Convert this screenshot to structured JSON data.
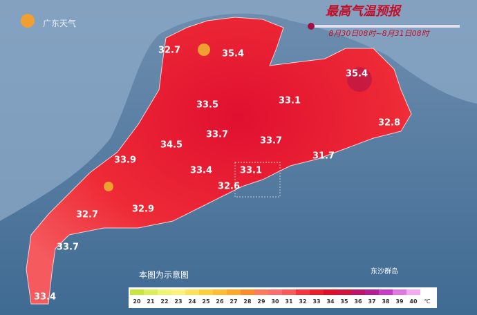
{
  "logo": {
    "text": "广东天气"
  },
  "header": {
    "title": "最高气温预报",
    "period": "8月30日08时~8月31日08时"
  },
  "map": {
    "labels": [
      "32.7",
      "35.4",
      "35.4",
      "33.5",
      "33.1",
      "32.8",
      "33.7",
      "33.7",
      "34.5",
      "31.7",
      "33.9",
      "33.4",
      "33.1",
      "32.6",
      "32.7",
      "32.9",
      "33.7",
      "33.4"
    ],
    "island": "东沙群岛",
    "note": "本图为示意图"
  },
  "legend": {
    "unit": "℃",
    "items": [
      {
        "label": 20,
        "color": "#c8e63c"
      },
      {
        "label": 21,
        "color": "#dcef5a"
      },
      {
        "label": 22,
        "color": "#eef56e"
      },
      {
        "label": 23,
        "color": "#fff27a"
      },
      {
        "label": 24,
        "color": "#ffe25a"
      },
      {
        "label": 25,
        "color": "#ffd03c"
      },
      {
        "label": 26,
        "color": "#ffbe32"
      },
      {
        "label": 27,
        "color": "#ffa82a"
      },
      {
        "label": 28,
        "color": "#ff8c28"
      },
      {
        "label": 29,
        "color": "#ff7a5a"
      },
      {
        "label": 30,
        "color": "#ff6e6e"
      },
      {
        "label": 31,
        "color": "#ff5a5a"
      },
      {
        "label": 32,
        "color": "#f7323c"
      },
      {
        "label": 33,
        "color": "#ee1c28"
      },
      {
        "label": 34,
        "color": "#e0102a"
      },
      {
        "label": 35,
        "color": "#d2143c"
      },
      {
        "label": 36,
        "color": "#c0146a"
      },
      {
        "label": 37,
        "color": "#b41e96"
      },
      {
        "label": 38,
        "color": "#c83cc8"
      },
      {
        "label": 39,
        "color": "#e078e0"
      },
      {
        "label": 40,
        "color": "#f5aaf0"
      }
    ]
  }
}
